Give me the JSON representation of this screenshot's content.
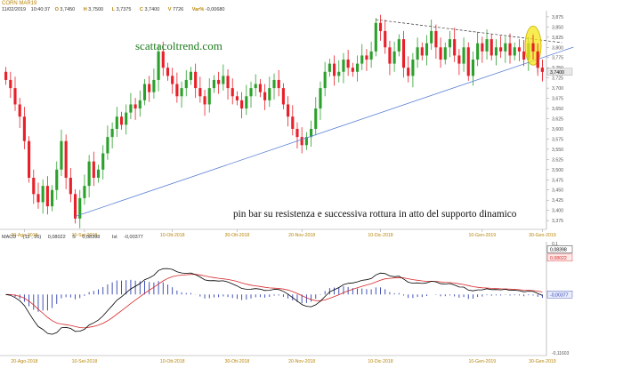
{
  "header": {
    "symbol": "CORN MAR19",
    "date": "11/02/2019",
    "time": "10:40:37",
    "open": "3,7450",
    "high": "3,7500",
    "low": "3,7375",
    "close": "3,7400",
    "volume": "7726",
    "change": "-0,00680",
    "open_prefix": "O",
    "high_prefix": "H",
    "low_prefix": "L",
    "close_prefix": "C",
    "volume_prefix": "V",
    "change_prefix": "Var%"
  },
  "watermark": "scattacoltrend.com",
  "annotation": "pin bar su resistenza e successiva rottura in atto del supporto dinamico",
  "colors": {
    "up": "#2ca02c",
    "down": "#e8202a",
    "trendline": "#5b7fd6",
    "resistance": "#333333",
    "highlight": "#f5e61a",
    "macd_line": "#000000",
    "signal_line": "#d62728",
    "histogram": "#2f3fb0",
    "date_label": "#b8860b"
  },
  "macd": {
    "label": "MACD",
    "params": "(12 , 26)",
    "macd_value": "0,08022",
    "signal_prefix": "S",
    "signal_value": "0,08398",
    "hist_prefix": "Ist",
    "hist_value": "-0,00377",
    "right_labels": [
      "0,08398",
      "0,08022",
      "-0,00377"
    ],
    "y_ticks": [
      "0,1",
      "-0,11603"
    ],
    "ylim": [
      -0.116,
      0.1
    ]
  },
  "chart_data": {
    "type": "candlestick",
    "title": "CORN MAR19",
    "y_ticks": [
      "3,875",
      "3,850",
      "3,825",
      "3,800",
      "3,775",
      "3,750",
      "3,725",
      "3,700",
      "3,675",
      "3,650",
      "3,625",
      "3,600",
      "3,575",
      "3,550",
      "3,525",
      "3,500",
      "3,475",
      "3,450",
      "3,425",
      "3,400",
      "3,375"
    ],
    "ylim": [
      3.36,
      3.89
    ],
    "last_price_label": "3,7400",
    "x_ticks": [
      "20-Ago-2018",
      "10-Set-2018",
      "10-Ott-2018",
      "30-Ott-2018",
      "20-Nov-2018",
      "10-Dic-2018",
      "10-Gen-2019",
      "30-Gen-2019"
    ],
    "x_tick_index": [
      4,
      17,
      36,
      50,
      64,
      81,
      103,
      116
    ],
    "closes": [
      3.72,
      3.7,
      3.66,
      3.63,
      3.57,
      3.48,
      3.44,
      3.42,
      3.46,
      3.41,
      3.45,
      3.5,
      3.57,
      3.48,
      3.44,
      3.38,
      3.43,
      3.46,
      3.52,
      3.48,
      3.5,
      3.54,
      3.58,
      3.6,
      3.63,
      3.61,
      3.64,
      3.66,
      3.65,
      3.67,
      3.71,
      3.69,
      3.72,
      3.79,
      3.75,
      3.73,
      3.71,
      3.68,
      3.7,
      3.72,
      3.74,
      3.7,
      3.68,
      3.66,
      3.7,
      3.72,
      3.71,
      3.73,
      3.7,
      3.68,
      3.67,
      3.65,
      3.68,
      3.7,
      3.71,
      3.69,
      3.67,
      3.7,
      3.72,
      3.7,
      3.66,
      3.63,
      3.6,
      3.58,
      3.56,
      3.58,
      3.6,
      3.65,
      3.7,
      3.74,
      3.76,
      3.73,
      3.74,
      3.77,
      3.75,
      3.74,
      3.76,
      3.78,
      3.77,
      3.79,
      3.86,
      3.84,
      3.8,
      3.76,
      3.79,
      3.82,
      3.75,
      3.73,
      3.77,
      3.8,
      3.78,
      3.81,
      3.84,
      3.8,
      3.77,
      3.8,
      3.82,
      3.78,
      3.76,
      3.8,
      3.73,
      3.77,
      3.81,
      3.79,
      3.82,
      3.78,
      3.8,
      3.79,
      3.81,
      3.78,
      3.8,
      3.79,
      3.77,
      3.81,
      3.79,
      3.75,
      3.74
    ],
    "trendline_support": [
      [
        15,
        3.385
      ],
      [
        116,
        3.77
      ]
    ],
    "trendline_resistance": [
      [
        80,
        3.868
      ],
      [
        116,
        3.805
      ]
    ],
    "highlight_index": 114
  }
}
